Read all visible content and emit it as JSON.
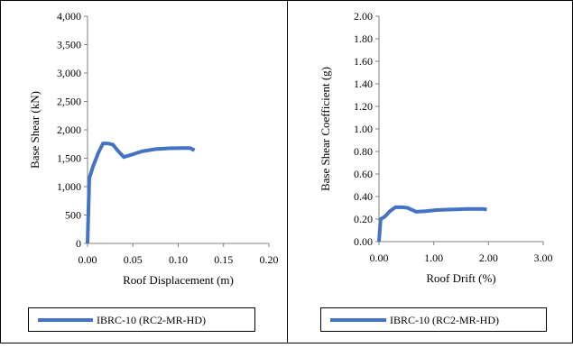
{
  "colors": {
    "series": "#4472C4",
    "axis": "#808080",
    "grid": "#d9d9d9",
    "frame": "#000000"
  },
  "chart_data": [
    {
      "type": "line",
      "xlabel": "Roof Displacement (m)",
      "ylabel": "Base Shear (kN)",
      "xlim": [
        0,
        0.2
      ],
      "ylim": [
        0,
        4000
      ],
      "xticks": [
        0,
        0.05,
        0.1,
        0.15,
        0.2
      ],
      "xtick_labels": [
        "0.00",
        "0.05",
        "0.10",
        "0.15",
        "0.20"
      ],
      "yticks": [
        0,
        500,
        1000,
        1500,
        2000,
        2500,
        3000,
        3500,
        4000
      ],
      "ytick_labels": [
        "0",
        "500",
        "1,000",
        "1,500",
        "2,000",
        "2,500",
        "3,000",
        "3,500",
        "4,000"
      ],
      "grid": false,
      "legend": "bottom",
      "series": [
        {
          "name": "IBRC-10 (RC2-MR-HD)",
          "x": [
            0,
            0.002,
            0.006,
            0.012,
            0.017,
            0.022,
            0.028,
            0.033,
            0.04,
            0.05,
            0.06,
            0.075,
            0.09,
            0.105,
            0.113,
            0.118
          ],
          "y": [
            0,
            1150,
            1350,
            1600,
            1760,
            1760,
            1740,
            1640,
            1520,
            1570,
            1620,
            1660,
            1675,
            1680,
            1680,
            1640
          ]
        }
      ]
    },
    {
      "type": "line",
      "xlabel": "Roof Drift (%)",
      "ylabel": "Base Shear Coefficient  (g)",
      "xlim": [
        0,
        3
      ],
      "ylim": [
        0,
        2
      ],
      "xticks": [
        0,
        1,
        2,
        3
      ],
      "xtick_labels": [
        "0.00",
        "1.00",
        "2.00",
        "3.00"
      ],
      "yticks": [
        0,
        0.2,
        0.4,
        0.6,
        0.8,
        1,
        1.2,
        1.4,
        1.6,
        1.8,
        2
      ],
      "ytick_labels": [
        "0.00",
        "0.20",
        "0.40",
        "0.60",
        "0.80",
        "1.00",
        "1.20",
        "1.40",
        "1.60",
        "1.80",
        "2.00"
      ],
      "grid": false,
      "legend": "bottom",
      "series": [
        {
          "name": "IBRC-10 (RC2-MR-HD)",
          "x": [
            0,
            0.03,
            0.1,
            0.2,
            0.3,
            0.42,
            0.52,
            0.68,
            0.85,
            1.05,
            1.3,
            1.6,
            1.9,
            1.97
          ],
          "y": [
            0,
            0.2,
            0.22,
            0.27,
            0.305,
            0.305,
            0.3,
            0.265,
            0.27,
            0.28,
            0.285,
            0.29,
            0.29,
            0.285
          ]
        }
      ]
    }
  ]
}
